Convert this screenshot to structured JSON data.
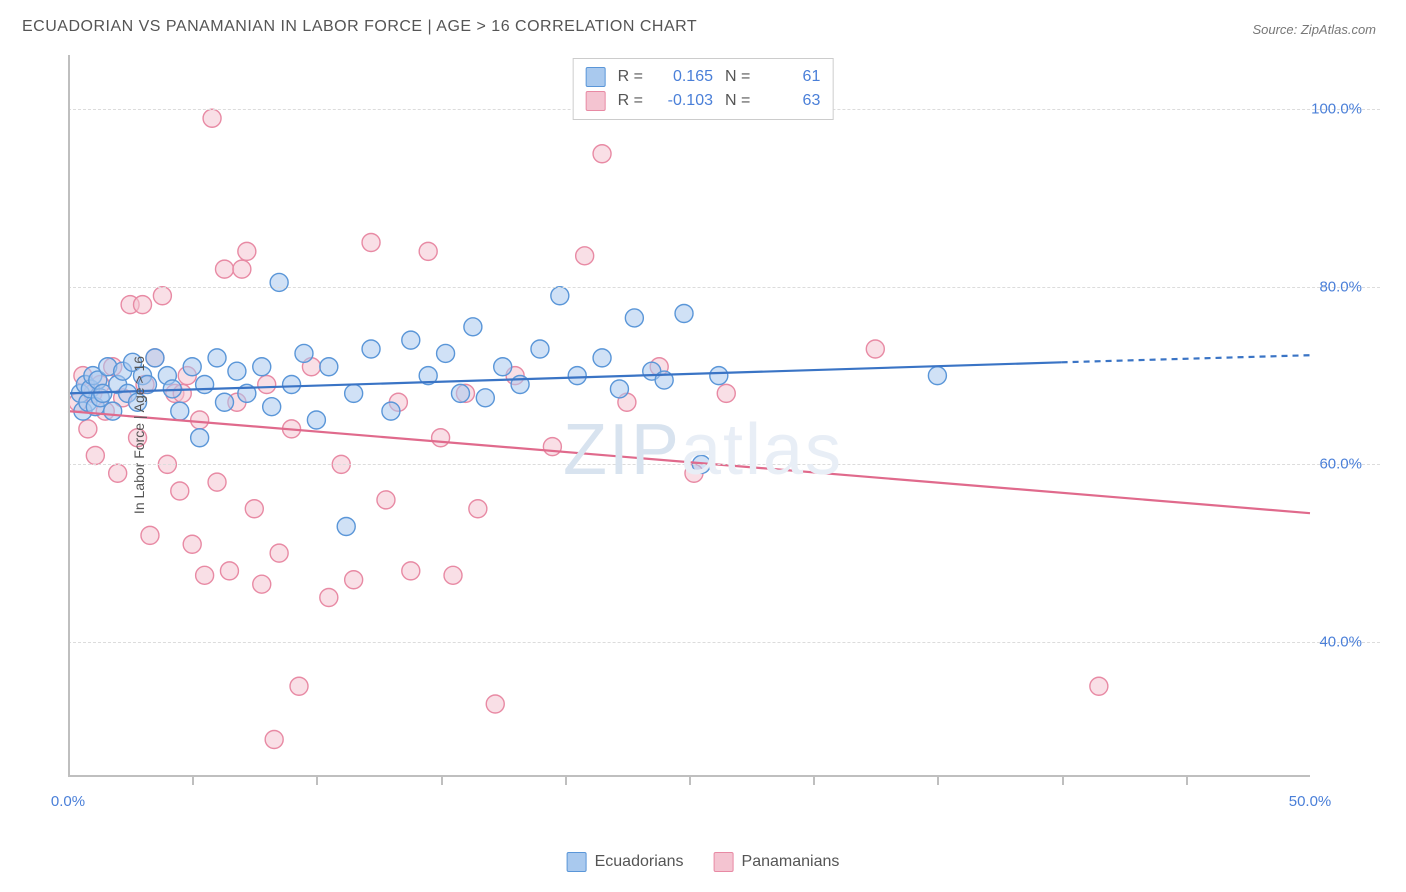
{
  "title": "ECUADORIAN VS PANAMANIAN IN LABOR FORCE | AGE > 16 CORRELATION CHART",
  "source": "Source: ZipAtlas.com",
  "ylabel": "In Labor Force | Age > 16",
  "watermark_bold": "ZIP",
  "watermark_light": "atlas",
  "chart": {
    "type": "scatter",
    "background": "#ffffff",
    "grid_color": "#dcdcdc",
    "axis_color": "#bfbfbf",
    "xlim": [
      0,
      50
    ],
    "ylim": [
      25,
      105
    ],
    "x_ticks": [
      0,
      50
    ],
    "x_tick_labels": [
      "0.0%",
      "50.0%"
    ],
    "x_minor_ticks": [
      5,
      10,
      15,
      20,
      25,
      30,
      35,
      40,
      45
    ],
    "y_ticks": [
      40,
      60,
      80,
      100
    ],
    "y_tick_labels": [
      "40.0%",
      "60.0%",
      "80.0%",
      "100.0%"
    ],
    "marker_radius": 9,
    "marker_opacity": 0.55,
    "line_width": 2.2,
    "series": [
      {
        "name": "Ecuadorians",
        "fill": "#a9c9ee",
        "stroke": "#5a96d8",
        "line_color": "#3a74c5",
        "R": "0.165",
        "N": "61",
        "trend": {
          "x1": 0,
          "y1": 68.0,
          "x2": 40,
          "y2": 71.5,
          "dash_from_x": 40,
          "dash_to_x": 50,
          "dash_y2": 72.3
        },
        "points": [
          [
            0.5,
            68
          ],
          [
            0.6,
            66
          ],
          [
            0.7,
            69
          ],
          [
            0.8,
            67
          ],
          [
            0.9,
            68.5
          ],
          [
            1.0,
            70
          ],
          [
            1.1,
            66.5
          ],
          [
            1.2,
            69.5
          ],
          [
            1.3,
            67.5
          ],
          [
            1.4,
            68
          ],
          [
            1.6,
            71
          ],
          [
            1.8,
            66
          ],
          [
            2.0,
            69
          ],
          [
            2.2,
            70.5
          ],
          [
            2.4,
            68
          ],
          [
            2.6,
            71.5
          ],
          [
            2.8,
            67
          ],
          [
            3.0,
            70
          ],
          [
            3.2,
            69
          ],
          [
            3.5,
            72
          ],
          [
            4.0,
            70
          ],
          [
            4.2,
            68.5
          ],
          [
            4.5,
            66
          ],
          [
            5.0,
            71
          ],
          [
            5.3,
            63
          ],
          [
            5.5,
            69
          ],
          [
            6.0,
            72
          ],
          [
            6.3,
            67
          ],
          [
            6.8,
            70.5
          ],
          [
            7.2,
            68
          ],
          [
            7.8,
            71
          ],
          [
            8.2,
            66.5
          ],
          [
            8.5,
            80.5
          ],
          [
            9.0,
            69
          ],
          [
            9.5,
            72.5
          ],
          [
            10.0,
            65
          ],
          [
            10.5,
            71
          ],
          [
            11.2,
            53
          ],
          [
            11.5,
            68
          ],
          [
            12.2,
            73
          ],
          [
            13.0,
            66
          ],
          [
            13.8,
            74
          ],
          [
            14.5,
            70
          ],
          [
            15.2,
            72.5
          ],
          [
            15.8,
            68
          ],
          [
            16.3,
            75.5
          ],
          [
            16.8,
            67.5
          ],
          [
            17.5,
            71
          ],
          [
            18.2,
            69
          ],
          [
            19.0,
            73
          ],
          [
            19.8,
            79
          ],
          [
            20.5,
            70
          ],
          [
            21.5,
            72
          ],
          [
            22.2,
            68.5
          ],
          [
            22.8,
            76.5
          ],
          [
            23.5,
            70.5
          ],
          [
            24.0,
            69.5
          ],
          [
            24.8,
            77
          ],
          [
            25.5,
            60
          ],
          [
            26.2,
            70
          ],
          [
            35.0,
            70
          ]
        ]
      },
      {
        "name": "Panamanians",
        "fill": "#f4c4d1",
        "stroke": "#e88aa4",
        "line_color": "#e06a8c",
        "R": "-0.103",
        "N": "63",
        "trend": {
          "x1": 0,
          "y1": 66.0,
          "x2": 50,
          "y2": 54.5
        },
        "points": [
          [
            0.4,
            67
          ],
          [
            0.6,
            70
          ],
          [
            0.8,
            64
          ],
          [
            1.0,
            68
          ],
          [
            1.1,
            61
          ],
          [
            1.3,
            69
          ],
          [
            1.5,
            66
          ],
          [
            1.8,
            71
          ],
          [
            2.0,
            59
          ],
          [
            2.2,
            67.5
          ],
          [
            2.5,
            78
          ],
          [
            2.8,
            63
          ],
          [
            3.1,
            69
          ],
          [
            3.3,
            52
          ],
          [
            3.5,
            72
          ],
          [
            3.8,
            79
          ],
          [
            4.0,
            60
          ],
          [
            4.3,
            68
          ],
          [
            4.5,
            57
          ],
          [
            4.8,
            70
          ],
          [
            5.0,
            51
          ],
          [
            5.3,
            65
          ],
          [
            5.5,
            47.5
          ],
          [
            5.8,
            99
          ],
          [
            6.0,
            58
          ],
          [
            6.3,
            82
          ],
          [
            6.5,
            48
          ],
          [
            6.8,
            67
          ],
          [
            7.2,
            84
          ],
          [
            7.5,
            55
          ],
          [
            7.8,
            46.5
          ],
          [
            8.0,
            69
          ],
          [
            8.3,
            29
          ],
          [
            8.5,
            50
          ],
          [
            9.0,
            64
          ],
          [
            9.3,
            35
          ],
          [
            9.8,
            71
          ],
          [
            10.5,
            45
          ],
          [
            11.0,
            60
          ],
          [
            11.5,
            47
          ],
          [
            12.2,
            85
          ],
          [
            12.8,
            56
          ],
          [
            13.3,
            67
          ],
          [
            13.8,
            48
          ],
          [
            14.5,
            84
          ],
          [
            15.0,
            63
          ],
          [
            15.5,
            47.5
          ],
          [
            16.0,
            68
          ],
          [
            16.5,
            55
          ],
          [
            17.2,
            33
          ],
          [
            18.0,
            70
          ],
          [
            19.5,
            62
          ],
          [
            20.8,
            83.5
          ],
          [
            21.5,
            95
          ],
          [
            22.5,
            67
          ],
          [
            23.8,
            71
          ],
          [
            25.2,
            59
          ],
          [
            26.5,
            68
          ],
          [
            32.5,
            73
          ],
          [
            41.5,
            35
          ],
          [
            7.0,
            82
          ],
          [
            3.0,
            78
          ],
          [
            4.6,
            68
          ]
        ]
      }
    ]
  },
  "legend_top": {
    "r_label": "R =",
    "n_label": "N ="
  },
  "legend_bottom": {
    "items": [
      "Ecuadorians",
      "Panamanians"
    ]
  }
}
